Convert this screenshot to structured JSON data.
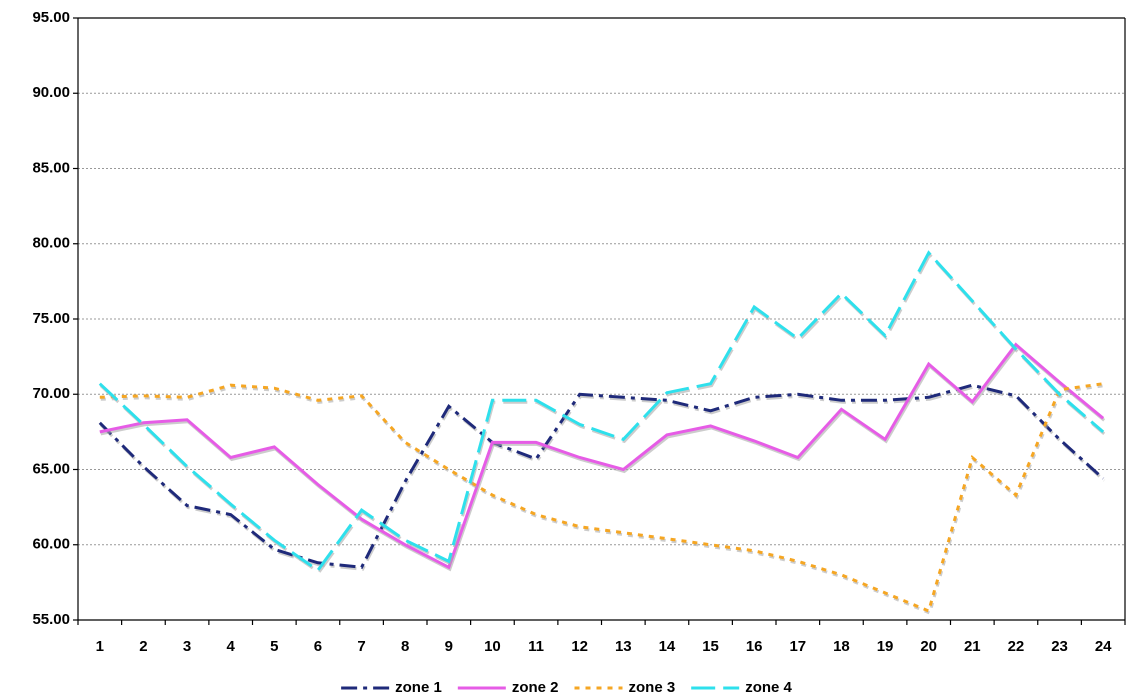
{
  "chart_data": {
    "type": "line",
    "categories": [
      "1",
      "2",
      "3",
      "4",
      "5",
      "6",
      "7",
      "8",
      "9",
      "10",
      "11",
      "12",
      "13",
      "14",
      "15",
      "16",
      "17",
      "18",
      "19",
      "20",
      "21",
      "22",
      "23",
      "24"
    ],
    "ylim": [
      55,
      95
    ],
    "yticks": [
      {
        "value": 55,
        "label": "55.00"
      },
      {
        "value": 60,
        "label": "60.00"
      },
      {
        "value": 65,
        "label": "65.00"
      },
      {
        "value": 70,
        "label": "70.00"
      },
      {
        "value": 75,
        "label": "75.00"
      },
      {
        "value": 80,
        "label": "80.00"
      },
      {
        "value": 85,
        "label": "85.00"
      },
      {
        "value": 90,
        "label": "90.00"
      },
      {
        "value": 95,
        "label": "95.00"
      }
    ],
    "grid": true,
    "legend": "bottom",
    "series": [
      {
        "name": "zone 1",
        "color": "#1f2a7a",
        "dash": "dash-dot",
        "values": [
          68.1,
          65.2,
          62.6,
          62.0,
          59.7,
          58.8,
          58.5,
          64.2,
          69.2,
          66.8,
          65.7,
          70.0,
          69.8,
          69.6,
          68.9,
          69.8,
          70.0,
          69.6,
          69.6,
          69.8,
          70.6,
          69.9,
          67.0,
          64.4
        ]
      },
      {
        "name": "zone 2",
        "color": "#e65ce6",
        "dash": "solid",
        "values": [
          67.5,
          68.1,
          68.3,
          65.8,
          66.5,
          64.0,
          61.7,
          60.0,
          58.5,
          66.8,
          66.8,
          65.8,
          65.0,
          67.3,
          67.9,
          66.9,
          65.8,
          69.0,
          67.0,
          72.0,
          69.5,
          73.3,
          70.8,
          68.4
        ]
      },
      {
        "name": "zone 3",
        "color": "#f5a623",
        "dash": "dotted",
        "values": [
          69.8,
          69.9,
          69.8,
          70.6,
          70.4,
          69.6,
          69.9,
          66.8,
          65.0,
          63.3,
          62.0,
          61.2,
          60.8,
          60.4,
          60.0,
          59.6,
          58.9,
          58.0,
          56.8,
          55.6,
          65.8,
          63.3,
          70.3,
          70.7
        ]
      },
      {
        "name": "zone 4",
        "color": "#2ee0ec",
        "dash": "dashed",
        "values": [
          70.7,
          68.0,
          65.2,
          62.7,
          60.3,
          58.3,
          62.3,
          60.3,
          58.9,
          69.6,
          69.6,
          68.0,
          67.0,
          70.1,
          70.7,
          75.8,
          73.7,
          76.7,
          73.9,
          79.4,
          76.2,
          73.0,
          70.0,
          67.5
        ]
      }
    ]
  }
}
